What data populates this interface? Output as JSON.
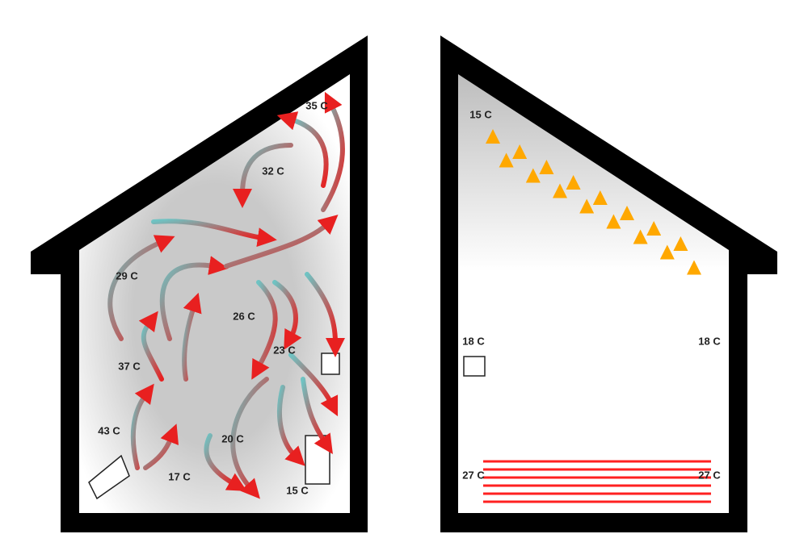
{
  "houses": [
    {
      "labels": [
        "35 C",
        "32 C",
        "29 C",
        "26 C",
        "23 C",
        "37 C",
        "43 C",
        "20 C",
        "17 C",
        "15 C"
      ]
    },
    {
      "labels": [
        "15 C",
        "18 C",
        "18 C",
        "27 C",
        "27 C"
      ]
    }
  ]
}
